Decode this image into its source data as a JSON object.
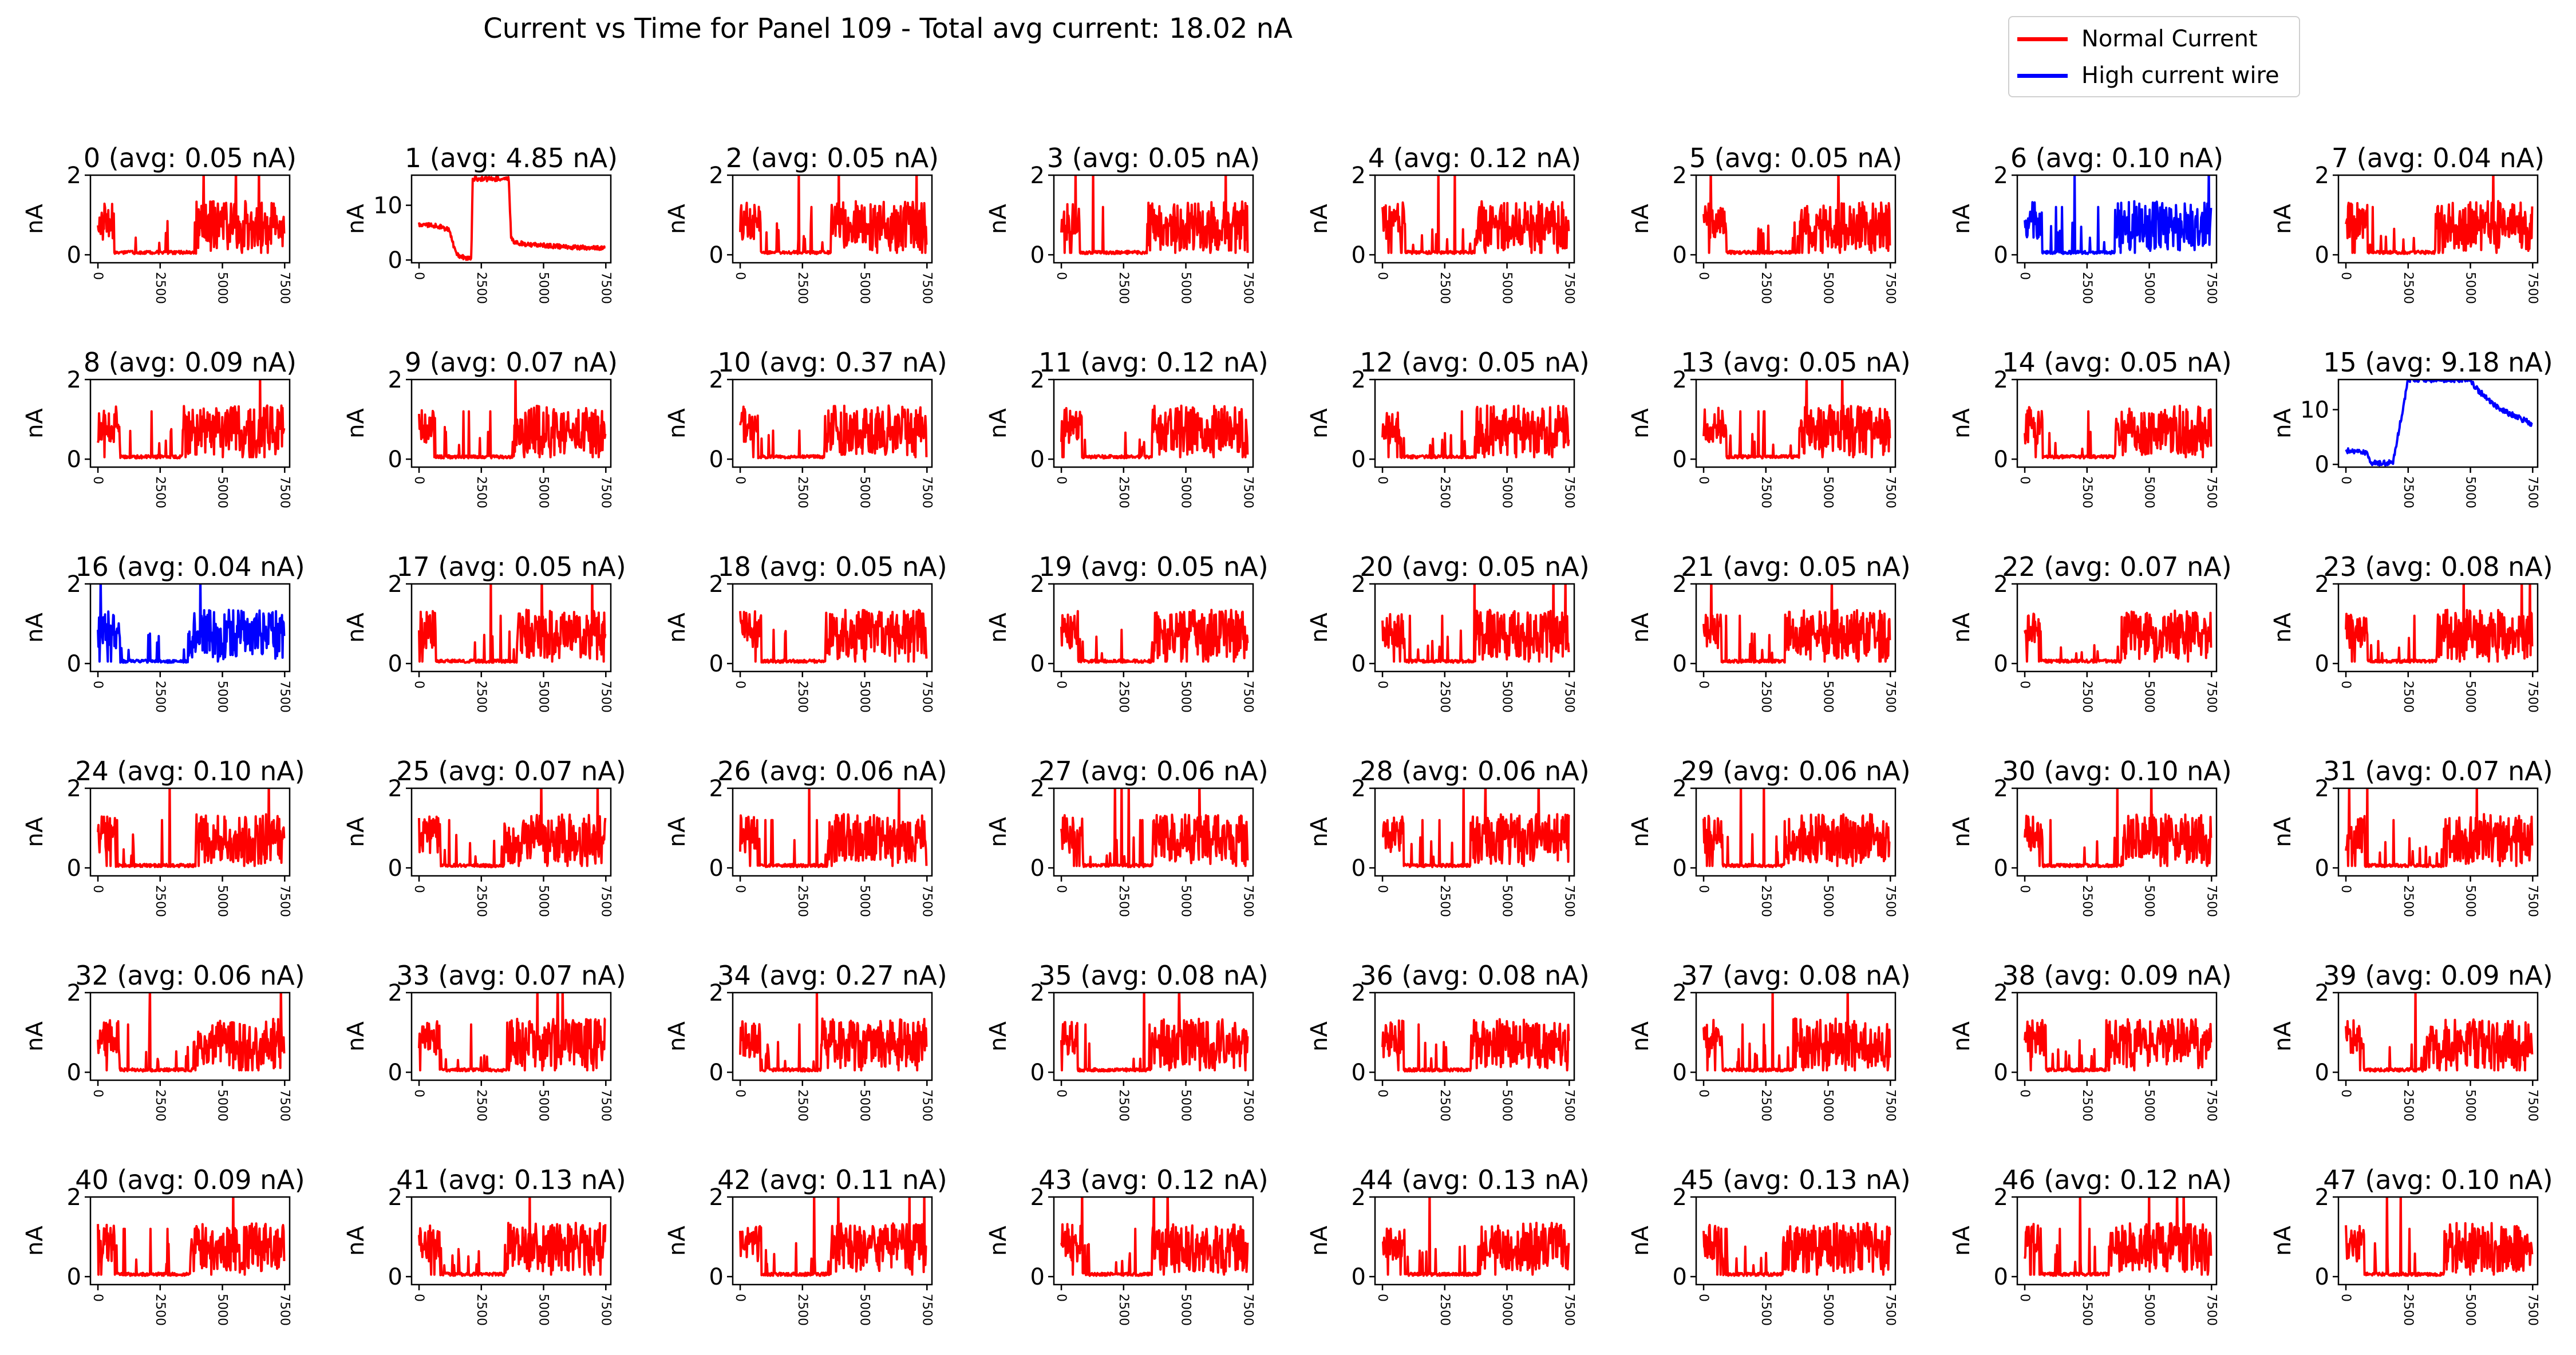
{
  "figure": {
    "title": "Current vs Time for Panel 109 - Total avg current: 18.02 nA"
  },
  "legend": {
    "placement": "top-right",
    "items": [
      {
        "label": "Normal Current",
        "color": "#ff0000"
      },
      {
        "label": "High current wire",
        "color": "#0000ff"
      }
    ]
  },
  "chart_data": {
    "type": "line",
    "layout": {
      "rows": 6,
      "columns": 8
    },
    "ylabel": "nA",
    "x_ticks": [
      "0",
      "2500",
      "5000",
      "7500"
    ],
    "xlim": [
      -300,
      7700
    ],
    "x_max": 7500,
    "colors": {
      "normal": "#ff0000",
      "high": "#0000ff"
    },
    "panels": [
      {
        "id": 0,
        "title": "0 (avg: 0.05 nA)",
        "category": "normal",
        "ylim": [
          -0.2,
          2
        ],
        "yticks": [
          "0",
          "2"
        ]
      },
      {
        "id": 1,
        "title": "1 (avg: 4.85 nA)",
        "category": "normal",
        "ylim": [
          -0.5,
          15.5
        ],
        "yticks": [
          "0",
          "10"
        ]
      },
      {
        "id": 2,
        "title": "2 (avg: 0.05 nA)",
        "category": "normal",
        "ylim": [
          -0.2,
          2
        ],
        "yticks": [
          "0",
          "2"
        ]
      },
      {
        "id": 3,
        "title": "3 (avg: 0.05 nA)",
        "category": "normal",
        "ylim": [
          -0.2,
          2
        ],
        "yticks": [
          "0",
          "2"
        ]
      },
      {
        "id": 4,
        "title": "4 (avg: 0.12 nA)",
        "category": "normal",
        "ylim": [
          -0.2,
          2
        ],
        "yticks": [
          "0",
          "2"
        ]
      },
      {
        "id": 5,
        "title": "5 (avg: 0.05 nA)",
        "category": "normal",
        "ylim": [
          -0.2,
          2
        ],
        "yticks": [
          "0",
          "2"
        ]
      },
      {
        "id": 6,
        "title": "6 (avg: 0.10 nA)",
        "category": "high",
        "ylim": [
          -0.2,
          2
        ],
        "yticks": [
          "0",
          "2"
        ]
      },
      {
        "id": 7,
        "title": "7 (avg: 0.04 nA)",
        "category": "normal",
        "ylim": [
          -0.2,
          2
        ],
        "yticks": [
          "0",
          "2"
        ]
      },
      {
        "id": 8,
        "title": "8 (avg: 0.09 nA)",
        "category": "normal",
        "ylim": [
          -0.2,
          2
        ],
        "yticks": [
          "0",
          "2"
        ]
      },
      {
        "id": 9,
        "title": "9 (avg: 0.07 nA)",
        "category": "normal",
        "ylim": [
          -0.2,
          2
        ],
        "yticks": [
          "0",
          "2"
        ]
      },
      {
        "id": 10,
        "title": "10 (avg: 0.37 nA)",
        "category": "normal",
        "ylim": [
          -0.2,
          2
        ],
        "yticks": [
          "0",
          "2"
        ]
      },
      {
        "id": 11,
        "title": "11 (avg: 0.12 nA)",
        "category": "normal",
        "ylim": [
          -0.2,
          2
        ],
        "yticks": [
          "0",
          "2"
        ]
      },
      {
        "id": 12,
        "title": "12 (avg: 0.05 nA)",
        "category": "normal",
        "ylim": [
          -0.2,
          2
        ],
        "yticks": [
          "0",
          "2"
        ]
      },
      {
        "id": 13,
        "title": "13 (avg: 0.05 nA)",
        "category": "normal",
        "ylim": [
          -0.2,
          2
        ],
        "yticks": [
          "0",
          "2"
        ]
      },
      {
        "id": 14,
        "title": "14 (avg: 0.05 nA)",
        "category": "normal",
        "ylim": [
          -0.2,
          2
        ],
        "yticks": [
          "0",
          "2"
        ]
      },
      {
        "id": 15,
        "title": "15 (avg: 9.18 nA)",
        "category": "high",
        "ylim": [
          -0.5,
          15.5
        ],
        "yticks": [
          "0",
          "10"
        ]
      },
      {
        "id": 16,
        "title": "16 (avg: 0.04 nA)",
        "category": "high",
        "ylim": [
          -0.2,
          2
        ],
        "yticks": [
          "0",
          "2"
        ]
      },
      {
        "id": 17,
        "title": "17 (avg: 0.05 nA)",
        "category": "normal",
        "ylim": [
          -0.2,
          2
        ],
        "yticks": [
          "0",
          "2"
        ]
      },
      {
        "id": 18,
        "title": "18 (avg: 0.05 nA)",
        "category": "normal",
        "ylim": [
          -0.2,
          2
        ],
        "yticks": [
          "0",
          "2"
        ]
      },
      {
        "id": 19,
        "title": "19 (avg: 0.05 nA)",
        "category": "normal",
        "ylim": [
          -0.2,
          2
        ],
        "yticks": [
          "0",
          "2"
        ]
      },
      {
        "id": 20,
        "title": "20 (avg: 0.05 nA)",
        "category": "normal",
        "ylim": [
          -0.2,
          2
        ],
        "yticks": [
          "0",
          "2"
        ]
      },
      {
        "id": 21,
        "title": "21 (avg: 0.05 nA)",
        "category": "normal",
        "ylim": [
          -0.2,
          2
        ],
        "yticks": [
          "0",
          "2"
        ]
      },
      {
        "id": 22,
        "title": "22 (avg: 0.07 nA)",
        "category": "normal",
        "ylim": [
          -0.2,
          2
        ],
        "yticks": [
          "0",
          "2"
        ]
      },
      {
        "id": 23,
        "title": "23 (avg: 0.08 nA)",
        "category": "normal",
        "ylim": [
          -0.2,
          2
        ],
        "yticks": [
          "0",
          "2"
        ]
      },
      {
        "id": 24,
        "title": "24 (avg: 0.10 nA)",
        "category": "normal",
        "ylim": [
          -0.2,
          2
        ],
        "yticks": [
          "0",
          "2"
        ]
      },
      {
        "id": 25,
        "title": "25 (avg: 0.07 nA)",
        "category": "normal",
        "ylim": [
          -0.2,
          2
        ],
        "yticks": [
          "0",
          "2"
        ]
      },
      {
        "id": 26,
        "title": "26 (avg: 0.06 nA)",
        "category": "normal",
        "ylim": [
          -0.2,
          2
        ],
        "yticks": [
          "0",
          "2"
        ]
      },
      {
        "id": 27,
        "title": "27 (avg: 0.06 nA)",
        "category": "normal",
        "ylim": [
          -0.2,
          2
        ],
        "yticks": [
          "0",
          "2"
        ]
      },
      {
        "id": 28,
        "title": "28 (avg: 0.06 nA)",
        "category": "normal",
        "ylim": [
          -0.2,
          2
        ],
        "yticks": [
          "0",
          "2"
        ]
      },
      {
        "id": 29,
        "title": "29 (avg: 0.06 nA)",
        "category": "normal",
        "ylim": [
          -0.2,
          2
        ],
        "yticks": [
          "0",
          "2"
        ]
      },
      {
        "id": 30,
        "title": "30 (avg: 0.10 nA)",
        "category": "normal",
        "ylim": [
          -0.2,
          2
        ],
        "yticks": [
          "0",
          "2"
        ]
      },
      {
        "id": 31,
        "title": "31 (avg: 0.07 nA)",
        "category": "normal",
        "ylim": [
          -0.2,
          2
        ],
        "yticks": [
          "0",
          "2"
        ]
      },
      {
        "id": 32,
        "title": "32 (avg: 0.06 nA)",
        "category": "normal",
        "ylim": [
          -0.2,
          2
        ],
        "yticks": [
          "0",
          "2"
        ]
      },
      {
        "id": 33,
        "title": "33 (avg: 0.07 nA)",
        "category": "normal",
        "ylim": [
          -0.2,
          2
        ],
        "yticks": [
          "0",
          "2"
        ]
      },
      {
        "id": 34,
        "title": "34 (avg: 0.27 nA)",
        "category": "normal",
        "ylim": [
          -0.2,
          2
        ],
        "yticks": [
          "0",
          "2"
        ]
      },
      {
        "id": 35,
        "title": "35 (avg: 0.08 nA)",
        "category": "normal",
        "ylim": [
          -0.2,
          2
        ],
        "yticks": [
          "0",
          "2"
        ]
      },
      {
        "id": 36,
        "title": "36 (avg: 0.08 nA)",
        "category": "normal",
        "ylim": [
          -0.2,
          2
        ],
        "yticks": [
          "0",
          "2"
        ]
      },
      {
        "id": 37,
        "title": "37 (avg: 0.08 nA)",
        "category": "normal",
        "ylim": [
          -0.2,
          2
        ],
        "yticks": [
          "0",
          "2"
        ]
      },
      {
        "id": 38,
        "title": "38 (avg: 0.09 nA)",
        "category": "normal",
        "ylim": [
          -0.2,
          2
        ],
        "yticks": [
          "0",
          "2"
        ]
      },
      {
        "id": 39,
        "title": "39 (avg: 0.09 nA)",
        "category": "normal",
        "ylim": [
          -0.2,
          2
        ],
        "yticks": [
          "0",
          "2"
        ]
      },
      {
        "id": 40,
        "title": "40 (avg: 0.09 nA)",
        "category": "normal",
        "ylim": [
          -0.2,
          2
        ],
        "yticks": [
          "0",
          "2"
        ]
      },
      {
        "id": 41,
        "title": "41 (avg: 0.13 nA)",
        "category": "normal",
        "ylim": [
          -0.2,
          2
        ],
        "yticks": [
          "0",
          "2"
        ]
      },
      {
        "id": 42,
        "title": "42 (avg: 0.11 nA)",
        "category": "normal",
        "ylim": [
          -0.2,
          2
        ],
        "yticks": [
          "0",
          "2"
        ]
      },
      {
        "id": 43,
        "title": "43 (avg: 0.12 nA)",
        "category": "normal",
        "ylim": [
          -0.2,
          2
        ],
        "yticks": [
          "0",
          "2"
        ]
      },
      {
        "id": 44,
        "title": "44 (avg: 0.13 nA)",
        "category": "normal",
        "ylim": [
          -0.2,
          2
        ],
        "yticks": [
          "0",
          "2"
        ]
      },
      {
        "id": 45,
        "title": "45 (avg: 0.13 nA)",
        "category": "normal",
        "ylim": [
          -0.2,
          2
        ],
        "yticks": [
          "0",
          "2"
        ]
      },
      {
        "id": 46,
        "title": "46 (avg: 0.12 nA)",
        "category": "normal",
        "ylim": [
          -0.2,
          2
        ],
        "yticks": [
          "0",
          "2"
        ]
      },
      {
        "id": 47,
        "title": "47 (avg: 0.10 nA)",
        "category": "normal",
        "ylim": [
          -0.2,
          2
        ],
        "yticks": [
          "0",
          "2"
        ]
      }
    ],
    "wire_1_profile": {
      "x": [
        0,
        600,
        900,
        1200,
        1500,
        1800,
        2100,
        2150,
        2600,
        3000,
        3600,
        3700,
        3800,
        4500,
        5500,
        6500,
        7500
      ],
      "y": [
        6.5,
        6.3,
        6,
        5.5,
        1,
        0.5,
        0.3,
        14.8,
        14.8,
        14.8,
        14.8,
        4,
        3.2,
        2.8,
        2.5,
        2.3,
        2.2
      ]
    },
    "wire_15_profile": {
      "x": [
        0,
        800,
        1000,
        1400,
        1900,
        2500,
        3000,
        4000,
        5000,
        5200,
        5700,
        6200,
        6800,
        7200,
        7500
      ],
      "y": [
        2.5,
        2.2,
        0.4,
        0.1,
        0.5,
        15.5,
        15.5,
        15.5,
        15.5,
        14,
        12,
        10,
        8.8,
        8,
        7.3
      ]
    }
  }
}
